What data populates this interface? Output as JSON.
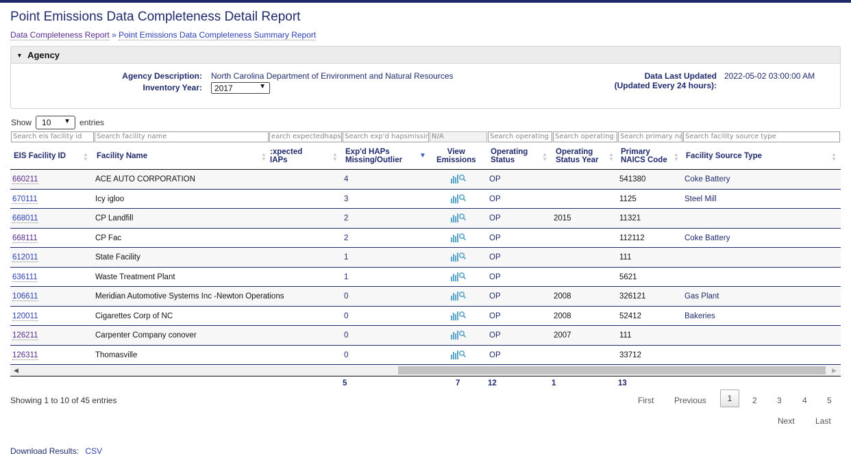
{
  "page_title": "Point Emissions Data Completeness Detail Report",
  "breadcrumbs": [
    "Data Completeness Report",
    "Point Emissions Data Completeness Summary Report"
  ],
  "breadcrumb_sep": "»",
  "agency": {
    "header": "Agency",
    "description_label": "Agency Description:",
    "description": "North Carolina Department of Environment and Natural Resources",
    "year_label": "Inventory Year:",
    "year": "2017",
    "updated_label": "Data Last Updated",
    "updated_sub": "(Updated Every 24 hours):",
    "updated_value": "2022-05-02 03:00:00 AM"
  },
  "length": {
    "show": "Show",
    "value": "10",
    "entries": "entries"
  },
  "filters": {
    "eis_id": "Search eis facility id",
    "name": "Search facility name",
    "expected": "earch expectedhaps",
    "missing": "Search exp'd hapsmissinç",
    "view": "N/A",
    "status": "Search operating st",
    "status_year": "Search operating st",
    "naics": "Search primary nai",
    "source_type": "Search facility source type"
  },
  "columns": {
    "eis_id": "EIS Facility ID",
    "name": "Facility Name",
    "expected_1": ":xpected",
    "expected_2": "IAPs",
    "missing_1": "Exp'd HAPs",
    "missing_2": "Missing/Outlier",
    "view_1": "View",
    "view_2": "Emissions",
    "status_1": "Operating",
    "status_2": "Status",
    "status_year_1": "Operating",
    "status_year_2": "Status Year",
    "naics_1": "Primary",
    "naics_2": "NAICS Code",
    "source_type": "Facility Source Type"
  },
  "rows": [
    {
      "id": "660211",
      "name": "ACE AUTO CORPORATION",
      "missing": "4",
      "status": "OP",
      "year": "",
      "naics": "541380",
      "type": "Coke Battery"
    },
    {
      "id": "670111",
      "name": "Icy igloo",
      "missing": "3",
      "status": "OP",
      "year": "",
      "naics": "1125",
      "type": "Steel Mill"
    },
    {
      "id": "668011",
      "name": "CP Landfill",
      "missing": "2",
      "status": "OP",
      "year": "2015",
      "naics": "11321",
      "type": ""
    },
    {
      "id": "668111",
      "name": "CP Fac",
      "missing": "2",
      "status": "OP",
      "year": "",
      "naics": "112112",
      "type": "Coke Battery"
    },
    {
      "id": "612011",
      "name": "State Facility",
      "missing": "1",
      "status": "OP",
      "year": "",
      "naics": "111",
      "type": ""
    },
    {
      "id": "636111",
      "name": "Waste Treatment Plant",
      "missing": "1",
      "status": "OP",
      "year": "",
      "naics": "5621",
      "type": ""
    },
    {
      "id": "106611",
      "name": "Meridian Automotive Systems Inc -Newton Operations",
      "missing": "0",
      "status": "OP",
      "year": "2008",
      "naics": "326121",
      "type": "Gas Plant"
    },
    {
      "id": "120011",
      "name": "Cigarettes Corp of NC",
      "missing": "0",
      "status": "OP",
      "year": "2008",
      "naics": "52412",
      "type": "Bakeries"
    },
    {
      "id": "126211",
      "name": "Carpenter Company conover",
      "missing": "0",
      "status": "OP",
      "year": "2007",
      "naics": "111",
      "type": ""
    },
    {
      "id": "126311",
      "name": "Thomasville",
      "missing": "0",
      "status": "OP",
      "year": "",
      "naics": "33712",
      "type": ""
    }
  ],
  "totals": {
    "missing": "5",
    "view": "7",
    "status": "12",
    "status_year": "1",
    "naics": "13"
  },
  "info": "Showing 1 to 10 of 45 entries",
  "pagination": {
    "first": "First",
    "previous": "Previous",
    "pages": [
      "1",
      "2",
      "3",
      "4",
      "5"
    ],
    "next": "Next",
    "last": "Last"
  },
  "download": {
    "label": "Download Results:",
    "csv": "CSV"
  },
  "colors": {
    "accent": "#1f2a6b",
    "link": "#2a3fb0",
    "visited": "#5a2a8c",
    "icon_bar": "#5aa6c8"
  },
  "icons": {
    "collapse": "triangle-down-icon",
    "view": "bar-chart-magnifier-icon",
    "sort": "sort-arrows-icon"
  }
}
